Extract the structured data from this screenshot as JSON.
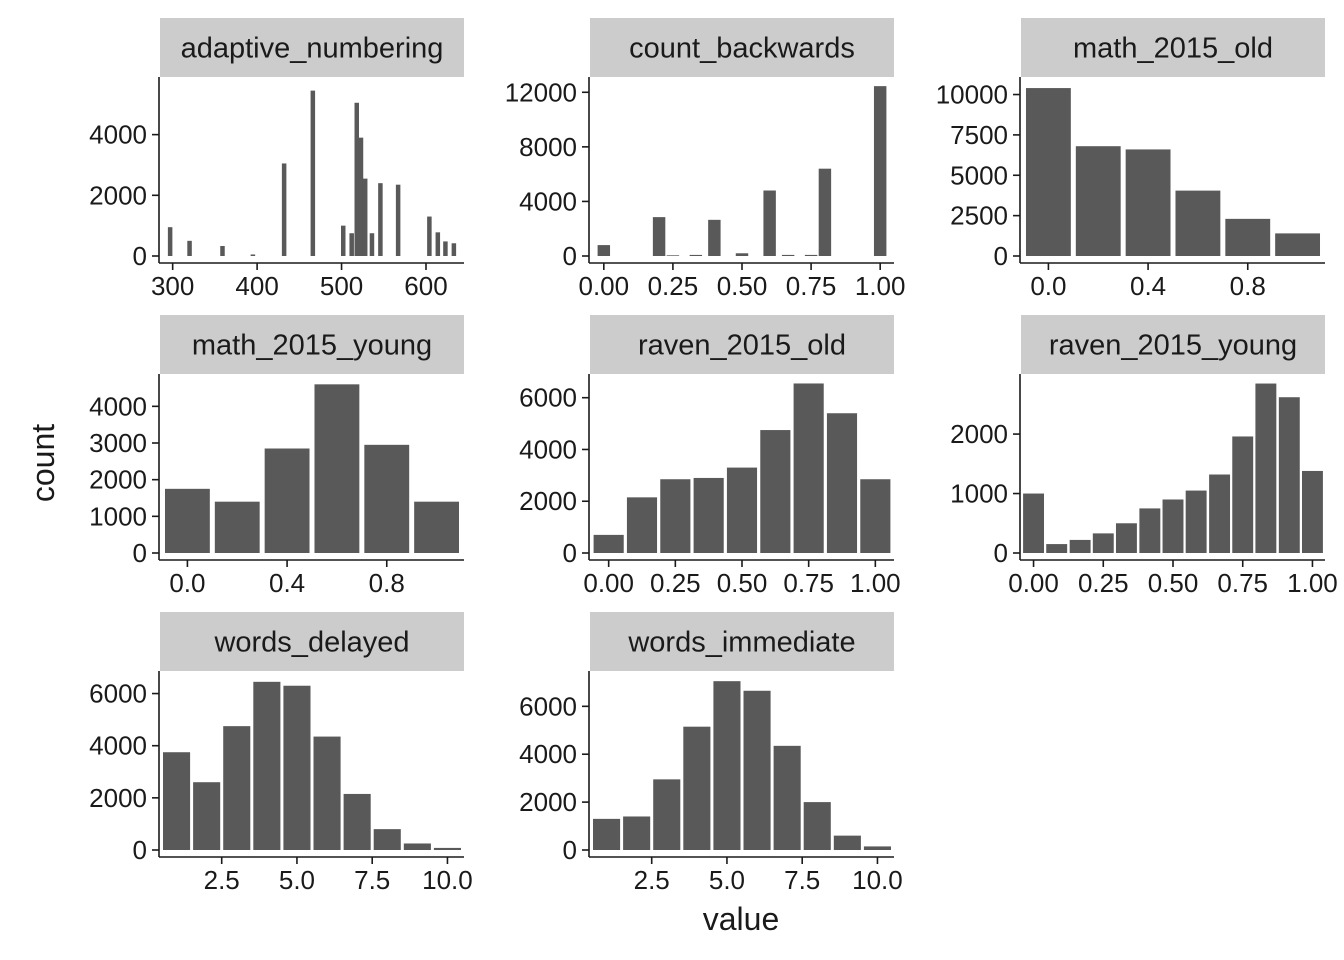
{
  "chart_data": {
    "type": "bar",
    "xlabel": "value",
    "ylabel": "count",
    "colors": {
      "bar": "#595959",
      "strip": "#cccccc",
      "background": "#ffffff",
      "text": "#1a1a1a"
    },
    "panels": [
      {
        "name": "adaptive_numbering",
        "x": [
          297,
          320,
          359,
          395,
          432,
          466,
          502,
          512,
          518,
          523,
          528,
          536,
          546,
          567,
          604,
          614,
          623,
          633
        ],
        "values": [
          950,
          500,
          330,
          50,
          3050,
          5450,
          1000,
          750,
          5050,
          3900,
          2550,
          750,
          2400,
          2350,
          1300,
          780,
          480,
          420
        ],
        "xlim": [
          285,
          645
        ],
        "xticks": [
          300,
          400,
          500,
          600
        ],
        "ylim": [
          0,
          5800
        ],
        "yticks": [
          0,
          2000,
          4000
        ]
      },
      {
        "name": "count_backwards",
        "x": [
          0,
          0.2,
          0.25,
          0.333,
          0.4,
          0.5,
          0.6,
          0.667,
          0.75,
          0.8,
          1.0
        ],
        "values": [
          800,
          2850,
          50,
          80,
          2650,
          200,
          4800,
          80,
          80,
          6400,
          12450
        ],
        "bar_width": 0.045,
        "xlim": [
          -0.05,
          1.05
        ],
        "xticks": [
          0.0,
          0.25,
          0.5,
          0.75,
          1.0
        ],
        "xtick_labels": [
          "0.00",
          "0.25",
          "0.50",
          "0.75",
          "1.00"
        ],
        "ylim": [
          0,
          12900
        ],
        "yticks": [
          0,
          4000,
          8000,
          12000
        ]
      },
      {
        "name": "math_2015_old",
        "x": [
          0.0,
          0.2,
          0.4,
          0.6,
          0.8,
          1.0
        ],
        "values": [
          10400,
          6800,
          6600,
          4050,
          2300,
          1400
        ],
        "bar_width": 0.18,
        "xlim": [
          -0.11,
          1.11
        ],
        "xticks": [
          0.0,
          0.4,
          0.8
        ],
        "xtick_labels": [
          "0.0",
          "0.4",
          "0.8"
        ],
        "ylim": [
          0,
          10900
        ],
        "yticks": [
          0,
          2500,
          5000,
          7500,
          10000
        ]
      },
      {
        "name": "math_2015_young",
        "x": [
          0.0,
          0.2,
          0.4,
          0.6,
          0.8,
          1.0
        ],
        "values": [
          1750,
          1400,
          2850,
          4600,
          2950,
          1400
        ],
        "bar_width": 0.18,
        "xlim": [
          -0.11,
          1.11
        ],
        "xticks": [
          0.0,
          0.4,
          0.8
        ],
        "xtick_labels": [
          "0.0",
          "0.4",
          "0.8"
        ],
        "ylim": [
          0,
          4800
        ],
        "yticks": [
          0,
          1000,
          2000,
          3000,
          4000
        ]
      },
      {
        "name": "raven_2015_old",
        "x": [
          0.0,
          0.125,
          0.25,
          0.375,
          0.5,
          0.625,
          0.75,
          0.875,
          1.0
        ],
        "values": [
          700,
          2150,
          2850,
          2900,
          3300,
          4750,
          6550,
          5400,
          2850
        ],
        "bar_width": 0.113,
        "xlim": [
          -0.07,
          1.07
        ],
        "xticks": [
          0.0,
          0.25,
          0.5,
          0.75,
          1.0
        ],
        "xtick_labels": [
          "0.00",
          "0.25",
          "0.50",
          "0.75",
          "1.00"
        ],
        "ylim": [
          0,
          6800
        ],
        "yticks": [
          0,
          2000,
          4000,
          6000
        ]
      },
      {
        "name": "raven_2015_young",
        "x": [
          0.0,
          0.083,
          0.167,
          0.25,
          0.333,
          0.417,
          0.5,
          0.583,
          0.667,
          0.75,
          0.833,
          0.917,
          1.0
        ],
        "values": [
          1000,
          150,
          220,
          330,
          500,
          750,
          900,
          1050,
          1320,
          1960,
          2850,
          2620,
          1380
        ],
        "bar_width": 0.075,
        "xlim": [
          -0.045,
          1.045
        ],
        "xticks": [
          0.0,
          0.25,
          0.5,
          0.75,
          1.0
        ],
        "xtick_labels": [
          "0.00",
          "0.25",
          "0.50",
          "0.75",
          "1.00"
        ],
        "ylim": [
          0,
          2960
        ],
        "yticks": [
          0,
          1000,
          2000
        ]
      },
      {
        "name": "words_delayed",
        "x": [
          1,
          2,
          3,
          4,
          5,
          6,
          7,
          8,
          9,
          10
        ],
        "values": [
          3750,
          2600,
          4750,
          6450,
          6300,
          4350,
          2150,
          800,
          250,
          80
        ],
        "bar_width": 0.9,
        "xlim": [
          0.45,
          10.55
        ],
        "xticks": [
          2.5,
          5.0,
          7.5,
          10.0
        ],
        "xtick_labels": [
          "2.5",
          "5.0",
          "7.5",
          "10.0"
        ],
        "ylim": [
          0,
          6750
        ],
        "yticks": [
          0,
          2000,
          4000,
          6000
        ]
      },
      {
        "name": "words_immediate",
        "x": [
          1,
          2,
          3,
          4,
          5,
          6,
          7,
          8,
          9,
          10
        ],
        "values": [
          1300,
          1400,
          2950,
          5150,
          7050,
          6650,
          4350,
          2000,
          600,
          150
        ],
        "bar_width": 0.9,
        "xlim": [
          0.45,
          10.55
        ],
        "xticks": [
          2.5,
          5.0,
          7.5,
          10.0
        ],
        "xtick_labels": [
          "2.5",
          "5.0",
          "7.5",
          "10.0"
        ],
        "ylim": [
          0,
          7350
        ],
        "yticks": [
          0,
          2000,
          4000,
          6000
        ]
      }
    ]
  }
}
